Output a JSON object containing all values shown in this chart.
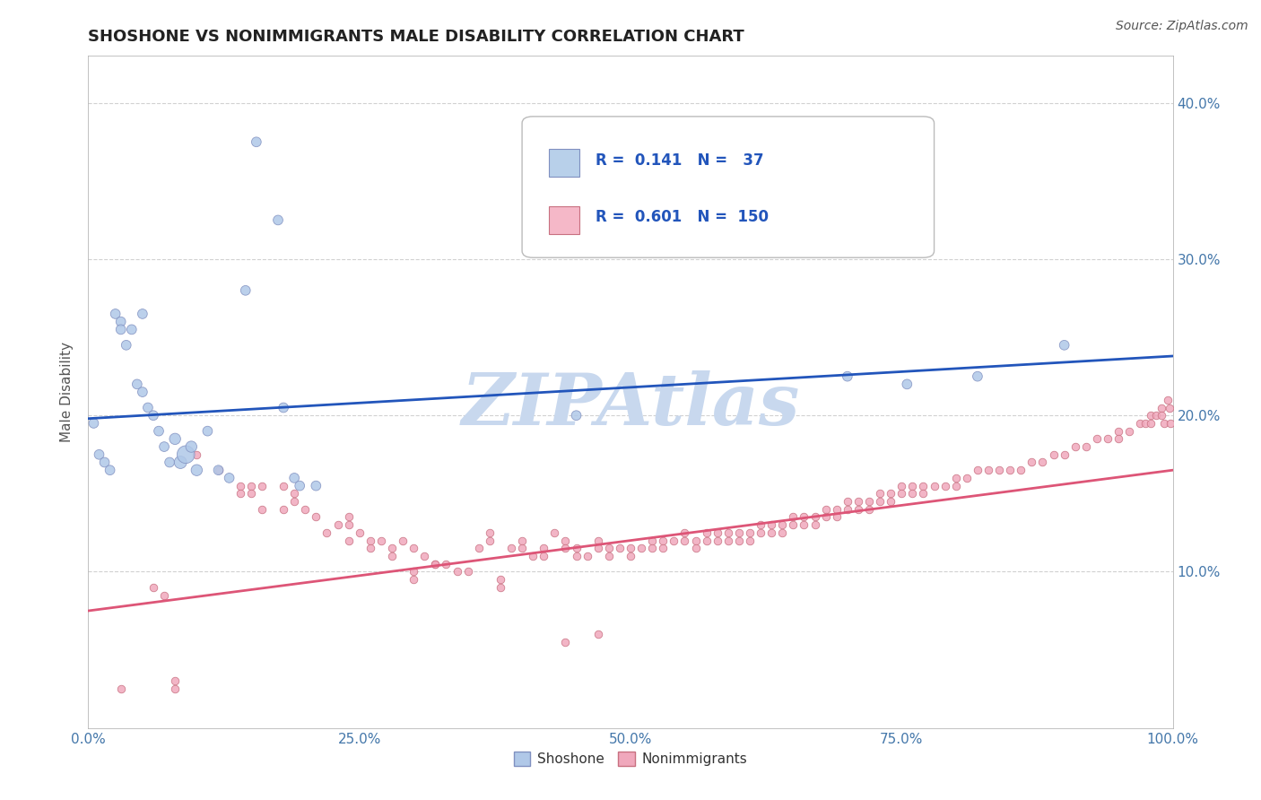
{
  "title": "SHOSHONE VS NONIMMIGRANTS MALE DISABILITY CORRELATION CHART",
  "source": "Source: ZipAtlas.com",
  "ylabel": "Male Disability",
  "watermark": "ZIPAtlas",
  "legend_entries": [
    {
      "label": "Shoshone",
      "R": 0.141,
      "N": 37,
      "color": "#b8d0ea"
    },
    {
      "label": "Nonimmigrants",
      "R": 0.601,
      "N": 150,
      "color": "#f5b8c8"
    }
  ],
  "shoshone_points": [
    [
      0.5,
      19.5
    ],
    [
      1.0,
      17.5
    ],
    [
      1.5,
      17.0
    ],
    [
      2.0,
      16.5
    ],
    [
      2.5,
      26.5
    ],
    [
      3.0,
      26.0
    ],
    [
      3.0,
      25.5
    ],
    [
      3.5,
      24.5
    ],
    [
      4.0,
      25.5
    ],
    [
      4.5,
      22.0
    ],
    [
      5.0,
      21.5
    ],
    [
      5.0,
      26.5
    ],
    [
      5.5,
      20.5
    ],
    [
      6.0,
      20.0
    ],
    [
      6.5,
      19.0
    ],
    [
      7.0,
      18.0
    ],
    [
      7.5,
      17.0
    ],
    [
      8.0,
      18.5
    ],
    [
      8.5,
      17.0
    ],
    [
      9.0,
      17.5
    ],
    [
      9.5,
      18.0
    ],
    [
      10.0,
      16.5
    ],
    [
      11.0,
      19.0
    ],
    [
      12.0,
      16.5
    ],
    [
      13.0,
      16.0
    ],
    [
      14.5,
      28.0
    ],
    [
      15.5,
      37.5
    ],
    [
      17.5,
      32.5
    ],
    [
      18.0,
      20.5
    ],
    [
      19.0,
      16.0
    ],
    [
      19.5,
      15.5
    ],
    [
      21.0,
      15.5
    ],
    [
      45.0,
      20.0
    ],
    [
      70.0,
      22.5
    ],
    [
      75.5,
      22.0
    ],
    [
      82.0,
      22.5
    ],
    [
      90.0,
      24.5
    ]
  ],
  "shoshone_sizes": [
    60,
    60,
    60,
    60,
    60,
    60,
    60,
    60,
    60,
    60,
    60,
    60,
    60,
    60,
    60,
    60,
    60,
    80,
    100,
    200,
    80,
    80,
    60,
    60,
    60,
    60,
    60,
    60,
    60,
    60,
    60,
    60,
    60,
    60,
    60,
    60,
    60
  ],
  "nonimmigrant_points": [
    [
      3.0,
      2.5
    ],
    [
      8.0,
      2.5
    ],
    [
      8.0,
      3.0
    ],
    [
      10.0,
      17.5
    ],
    [
      12.0,
      16.5
    ],
    [
      14.0,
      15.5
    ],
    [
      15.0,
      15.5
    ],
    [
      16.0,
      15.5
    ],
    [
      18.0,
      14.0
    ],
    [
      19.0,
      14.5
    ],
    [
      20.0,
      14.0
    ],
    [
      21.0,
      13.5
    ],
    [
      22.0,
      12.5
    ],
    [
      23.0,
      13.0
    ],
    [
      24.0,
      13.5
    ],
    [
      24.0,
      13.0
    ],
    [
      25.0,
      12.5
    ],
    [
      26.0,
      12.0
    ],
    [
      27.0,
      12.0
    ],
    [
      28.0,
      11.5
    ],
    [
      29.0,
      12.0
    ],
    [
      30.0,
      11.5
    ],
    [
      30.0,
      9.5
    ],
    [
      31.0,
      11.0
    ],
    [
      32.0,
      10.5
    ],
    [
      33.0,
      10.5
    ],
    [
      34.0,
      10.0
    ],
    [
      35.0,
      10.0
    ],
    [
      36.0,
      11.5
    ],
    [
      37.0,
      12.0
    ],
    [
      37.0,
      12.5
    ],
    [
      38.0,
      9.5
    ],
    [
      38.0,
      9.0
    ],
    [
      39.0,
      11.5
    ],
    [
      40.0,
      12.0
    ],
    [
      40.0,
      11.5
    ],
    [
      41.0,
      11.0
    ],
    [
      42.0,
      11.5
    ],
    [
      42.0,
      11.0
    ],
    [
      43.0,
      12.5
    ],
    [
      44.0,
      12.0
    ],
    [
      44.0,
      11.5
    ],
    [
      45.0,
      11.5
    ],
    [
      45.0,
      11.0
    ],
    [
      46.0,
      11.0
    ],
    [
      47.0,
      12.0
    ],
    [
      47.0,
      11.5
    ],
    [
      48.0,
      11.5
    ],
    [
      48.0,
      11.0
    ],
    [
      49.0,
      11.5
    ],
    [
      50.0,
      11.5
    ],
    [
      50.0,
      11.0
    ],
    [
      51.0,
      11.5
    ],
    [
      52.0,
      12.0
    ],
    [
      52.0,
      11.5
    ],
    [
      53.0,
      12.0
    ],
    [
      53.0,
      11.5
    ],
    [
      54.0,
      12.0
    ],
    [
      55.0,
      12.5
    ],
    [
      55.0,
      12.0
    ],
    [
      56.0,
      12.0
    ],
    [
      56.0,
      11.5
    ],
    [
      57.0,
      12.5
    ],
    [
      57.0,
      12.0
    ],
    [
      58.0,
      12.5
    ],
    [
      58.0,
      12.0
    ],
    [
      59.0,
      12.5
    ],
    [
      59.0,
      12.0
    ],
    [
      60.0,
      12.5
    ],
    [
      60.0,
      12.0
    ],
    [
      61.0,
      12.5
    ],
    [
      61.0,
      12.0
    ],
    [
      62.0,
      13.0
    ],
    [
      62.0,
      12.5
    ],
    [
      63.0,
      13.0
    ],
    [
      63.0,
      12.5
    ],
    [
      64.0,
      13.0
    ],
    [
      64.0,
      12.5
    ],
    [
      65.0,
      13.5
    ],
    [
      65.0,
      13.0
    ],
    [
      66.0,
      13.5
    ],
    [
      66.0,
      13.0
    ],
    [
      67.0,
      13.5
    ],
    [
      67.0,
      13.0
    ],
    [
      68.0,
      14.0
    ],
    [
      68.0,
      13.5
    ],
    [
      69.0,
      14.0
    ],
    [
      69.0,
      13.5
    ],
    [
      70.0,
      14.5
    ],
    [
      70.0,
      14.0
    ],
    [
      71.0,
      14.5
    ],
    [
      71.0,
      14.0
    ],
    [
      72.0,
      14.5
    ],
    [
      72.0,
      14.0
    ],
    [
      73.0,
      15.0
    ],
    [
      73.0,
      14.5
    ],
    [
      74.0,
      15.0
    ],
    [
      74.0,
      14.5
    ],
    [
      75.0,
      15.5
    ],
    [
      75.0,
      15.0
    ],
    [
      76.0,
      15.5
    ],
    [
      76.0,
      15.0
    ],
    [
      77.0,
      15.5
    ],
    [
      77.0,
      15.0
    ],
    [
      78.0,
      15.5
    ],
    [
      79.0,
      15.5
    ],
    [
      80.0,
      16.0
    ],
    [
      80.0,
      15.5
    ],
    [
      81.0,
      16.0
    ],
    [
      82.0,
      16.5
    ],
    [
      83.0,
      16.5
    ],
    [
      84.0,
      16.5
    ],
    [
      85.0,
      16.5
    ],
    [
      86.0,
      16.5
    ],
    [
      87.0,
      17.0
    ],
    [
      88.0,
      17.0
    ],
    [
      89.0,
      17.5
    ],
    [
      90.0,
      17.5
    ],
    [
      91.0,
      18.0
    ],
    [
      92.0,
      18.0
    ],
    [
      93.0,
      18.5
    ],
    [
      94.0,
      18.5
    ],
    [
      95.0,
      19.0
    ],
    [
      95.0,
      18.5
    ],
    [
      96.0,
      19.0
    ],
    [
      97.0,
      19.5
    ],
    [
      97.5,
      19.5
    ],
    [
      98.0,
      20.0
    ],
    [
      98.0,
      19.5
    ],
    [
      98.5,
      20.0
    ],
    [
      99.0,
      20.5
    ],
    [
      99.0,
      20.0
    ],
    [
      99.2,
      19.5
    ],
    [
      99.5,
      21.0
    ],
    [
      99.7,
      20.5
    ],
    [
      99.8,
      19.5
    ],
    [
      44.0,
      5.5
    ],
    [
      47.0,
      6.0
    ],
    [
      14.0,
      15.0
    ],
    [
      15.0,
      15.0
    ],
    [
      16.0,
      14.0
    ],
    [
      18.0,
      15.5
    ],
    [
      19.0,
      15.0
    ],
    [
      24.0,
      12.0
    ],
    [
      26.0,
      11.5
    ],
    [
      28.0,
      11.0
    ],
    [
      30.0,
      10.0
    ],
    [
      32.0,
      10.5
    ],
    [
      6.0,
      9.0
    ],
    [
      7.0,
      8.5
    ]
  ],
  "blue_line_x": [
    0,
    100
  ],
  "blue_line_y": [
    19.8,
    23.8
  ],
  "pink_line_x": [
    0,
    100
  ],
  "pink_line_y": [
    7.5,
    16.5
  ],
  "xlim": [
    0,
    100
  ],
  "ylim": [
    0,
    43
  ],
  "yticks": [
    10,
    20,
    30,
    40
  ],
  "ytick_labels": [
    "10.0%",
    "20.0%",
    "30.0%",
    "40.0%"
  ],
  "xticks": [
    0,
    25,
    50,
    75,
    100
  ],
  "xtick_labels": [
    "0.0%",
    "25.0%",
    "50.0%",
    "75.0%",
    "100.0%"
  ],
  "grid_color": "#cccccc",
  "bg_color": "#ffffff",
  "title_color": "#222222",
  "watermark_color": "#c8d8ee",
  "blue_scatter_color": "#b0c8e8",
  "blue_scatter_edge": "#8090c0",
  "pink_scatter_color": "#f0a8bc",
  "pink_scatter_edge": "#c87080",
  "blue_line_color": "#2255bb",
  "pink_line_color": "#dd5577"
}
